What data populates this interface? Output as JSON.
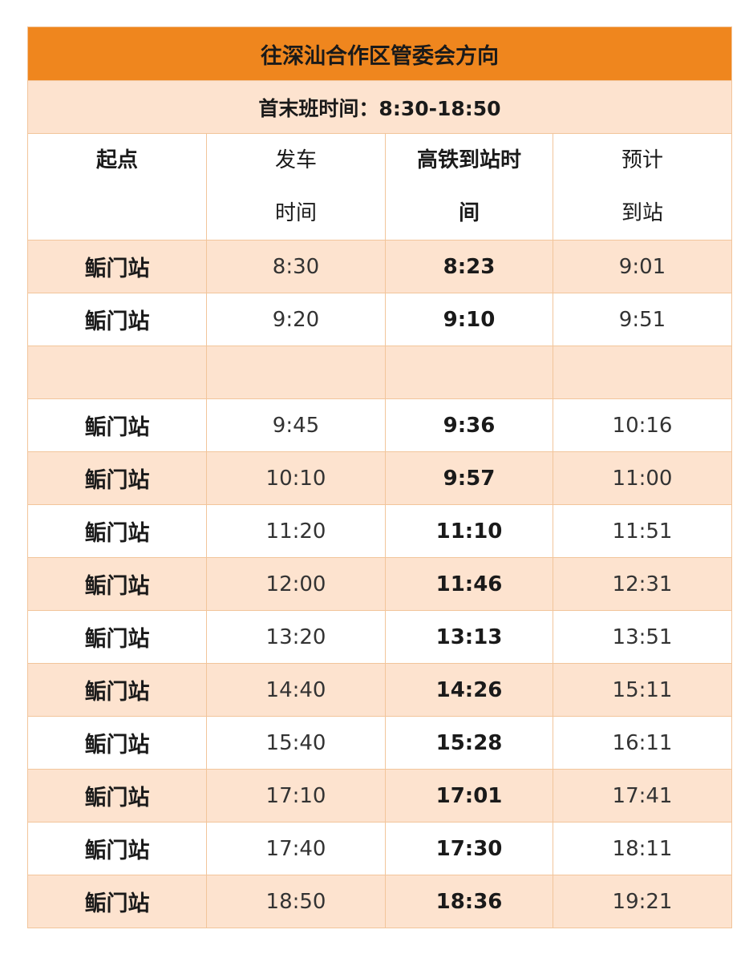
{
  "title": "往深汕合作区管委会方向",
  "service_hours": "首末班时间：8:30-18:50",
  "headers": {
    "start": "起点",
    "depart_line1": "发车",
    "depart_line2": "时间",
    "train_line1": "高铁到站时",
    "train_line2": "间",
    "arrive_line1": "预计",
    "arrive_line2": "到站"
  },
  "rows": [
    {
      "station": "鲘门站",
      "depart": "8:30",
      "train": "8:23",
      "arrive": "9:01"
    },
    {
      "station": "鲘门站",
      "depart": "9:20",
      "train": "9:10",
      "arrive": "9:51"
    },
    {
      "station": "",
      "depart": "",
      "train": "",
      "arrive": ""
    },
    {
      "station": "鲘门站",
      "depart": "9:45",
      "train": "9:36",
      "arrive": "10:16"
    },
    {
      "station": "鲘门站",
      "depart": "10:10",
      "train": "9:57",
      "arrive": "11:00"
    },
    {
      "station": "鲘门站",
      "depart": "11:20",
      "train": "11:10",
      "arrive": "11:51"
    },
    {
      "station": "鲘门站",
      "depart": "12:00",
      "train": "11:46",
      "arrive": "12:31"
    },
    {
      "station": "鲘门站",
      "depart": "13:20",
      "train": "13:13",
      "arrive": "13:51"
    },
    {
      "station": "鲘门站",
      "depart": "14:40",
      "train": "14:26",
      "arrive": "15:11"
    },
    {
      "station": "鲘门站",
      "depart": "15:40",
      "train": "15:28",
      "arrive": "16:11"
    },
    {
      "station": "鲘门站",
      "depart": "17:10",
      "train": "17:01",
      "arrive": "17:41"
    },
    {
      "station": "鲘门站",
      "depart": "17:40",
      "train": "17:30",
      "arrive": "18:11"
    },
    {
      "station": "鲘门站",
      "depart": "18:50",
      "train": "18:36",
      "arrive": "19:21"
    }
  ],
  "colors": {
    "header_orange": "#ef861e",
    "row_shade": "#fde3cf",
    "border": "#f2c59b"
  }
}
